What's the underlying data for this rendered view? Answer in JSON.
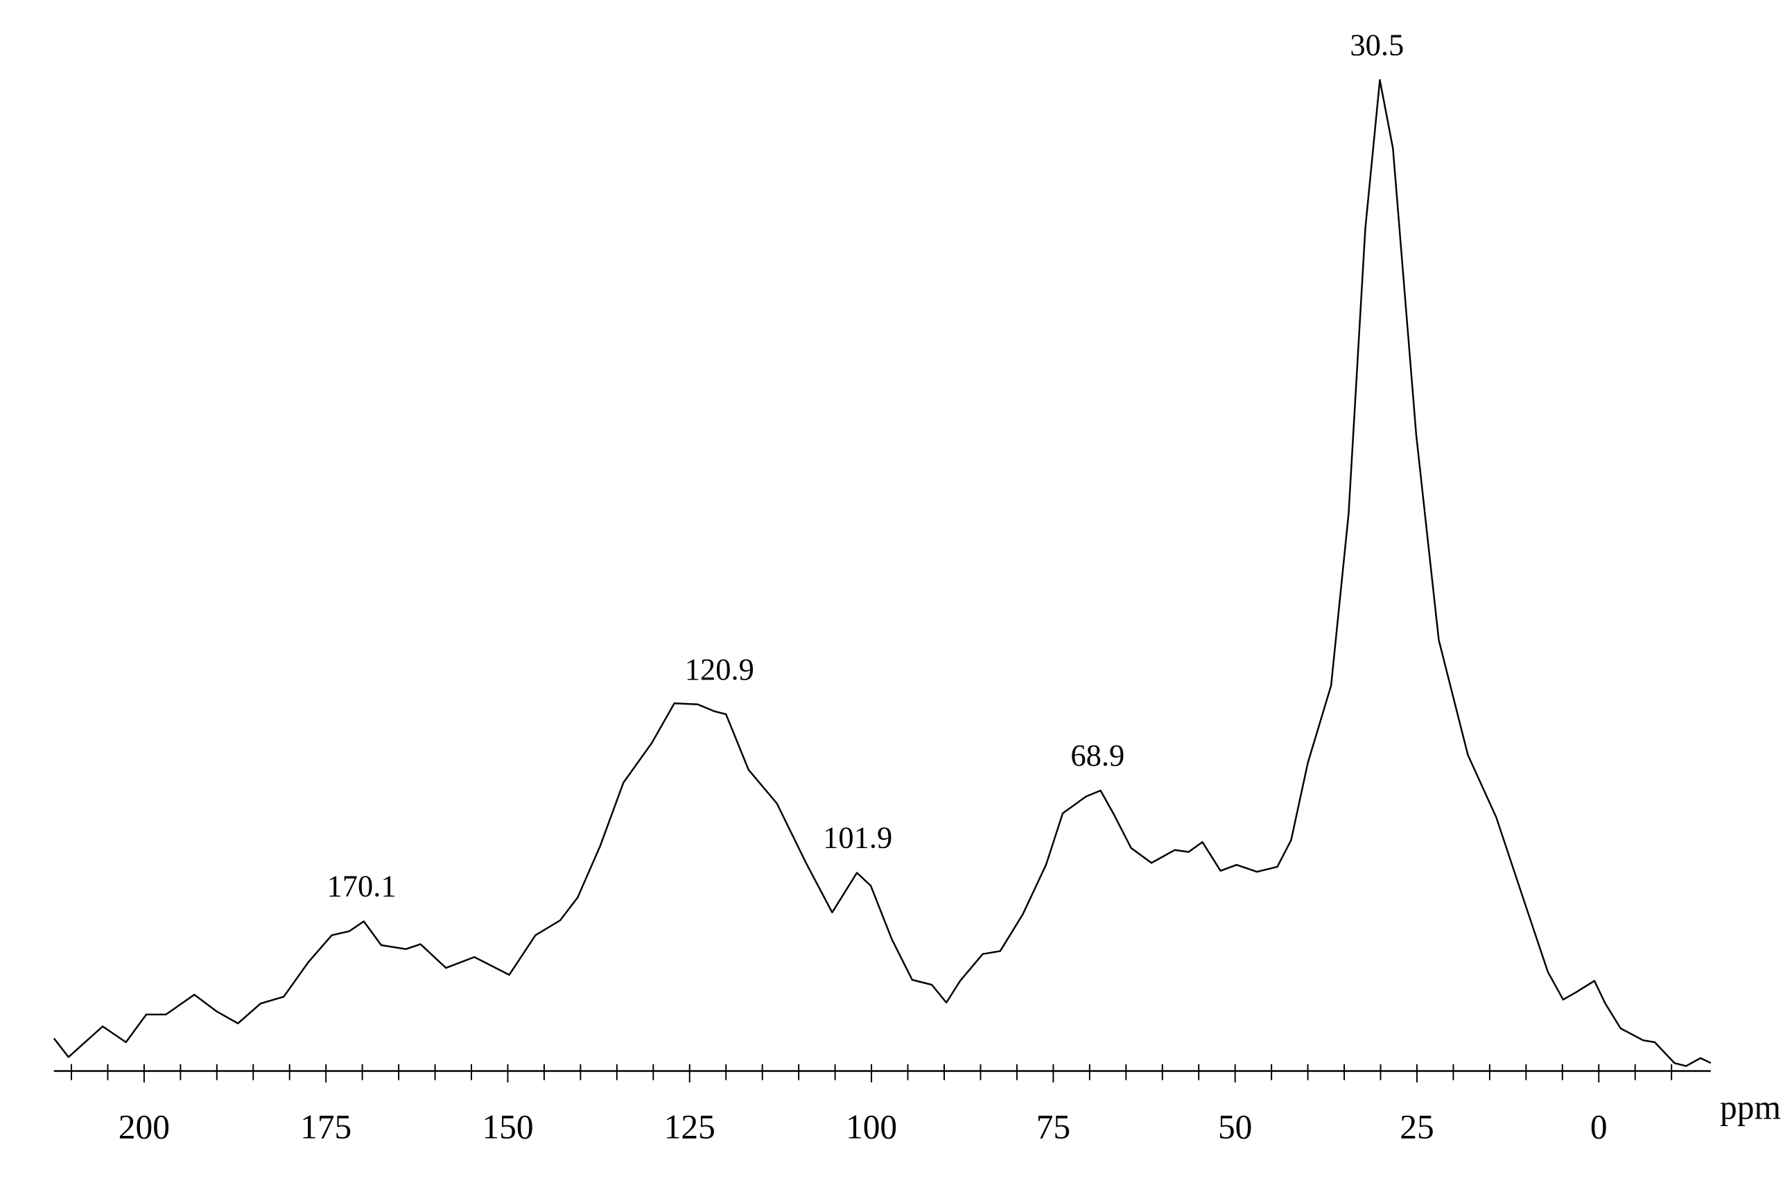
{
  "chart_data": {
    "type": "line",
    "xlabel": "ppm",
    "color": "#000000",
    "xlim": [
      212.4,
      -15.4
    ],
    "ylim": [
      0,
      100
    ],
    "xticks": [
      200,
      175,
      150,
      125,
      100,
      75,
      50,
      25,
      0
    ],
    "xminorticks": [
      210,
      205,
      195,
      190,
      185,
      180,
      170,
      165,
      160,
      155,
      145,
      140,
      135,
      130,
      120,
      115,
      110,
      105,
      95,
      90,
      85,
      80,
      70,
      65,
      60,
      55,
      45,
      40,
      35,
      30,
      20,
      15,
      10,
      5,
      -5,
      -10
    ],
    "x": [
      212.4,
      210.4,
      205.7,
      202.5,
      199.7,
      197,
      193.1,
      190,
      187.1,
      184,
      180.8,
      177.4,
      174.2,
      171.8,
      169.8,
      167.4,
      164,
      162,
      158.5,
      154.6,
      152.2,
      149.8,
      146.2,
      142.8,
      140.4,
      137.3,
      134.1,
      130.2,
      127.1,
      123.9,
      121.6,
      120,
      116.9,
      113,
      109,
      105.4,
      102,
      100.1,
      97.2,
      94.4,
      91.7,
      89.7,
      87.8,
      84.7,
      82.3,
      79.2,
      76,
      73.7,
      70.5,
      68.5,
      66.6,
      64.3,
      61.5,
      58.3,
      56.4,
      54.5,
      52,
      49.8,
      47,
      44.2,
      42.3,
      40,
      36.8,
      34.4,
      32.1,
      30.1,
      28.3,
      25.1,
      22,
      18,
      14.1,
      10.2,
      7,
      4.9,
      3,
      0.6,
      -0.9,
      -3,
      -6.1,
      -7.7,
      -10.4,
      -12,
      -14,
      -15.4
    ],
    "values": [
      3.3,
      1.4,
      4.5,
      2.9,
      5.7,
      5.7,
      7.7,
      6.0,
      4.8,
      6.8,
      7.5,
      11,
      13.7,
      14.1,
      15.1,
      12.7,
      12.3,
      12.8,
      10.4,
      11.5,
      10.6,
      9.7,
      13.7,
      15.2,
      17.5,
      22.7,
      29.1,
      33.1,
      37.1,
      37,
      36.3,
      36,
      30.4,
      27,
      21,
      16,
      20,
      18.7,
      13.3,
      9.2,
      8.7,
      6.9,
      9.1,
      11.8,
      12.1,
      15.8,
      20.8,
      26,
      27.7,
      28.3,
      25.8,
      22.5,
      21,
      22.3,
      22.1,
      23.1,
      20.2,
      20.8,
      20.1,
      20.6,
      23.3,
      31.1,
      38.9,
      56.2,
      85,
      100,
      93.1,
      64.2,
      43.5,
      31.9,
      25.6,
      17,
      10,
      7.2,
      8,
      9.1,
      6.8,
      4.3,
      3.1,
      2.9,
      0.8,
      0.5,
      1.3,
      0.8
    ],
    "annotations": [
      {
        "x": 170.1,
        "y": 15.1
      },
      {
        "x": 120.9,
        "y": 37
      },
      {
        "x": 101.9,
        "y": 20
      },
      {
        "x": 68.9,
        "y": 28.3
      },
      {
        "x": 30.5,
        "y": 100
      }
    ]
  }
}
